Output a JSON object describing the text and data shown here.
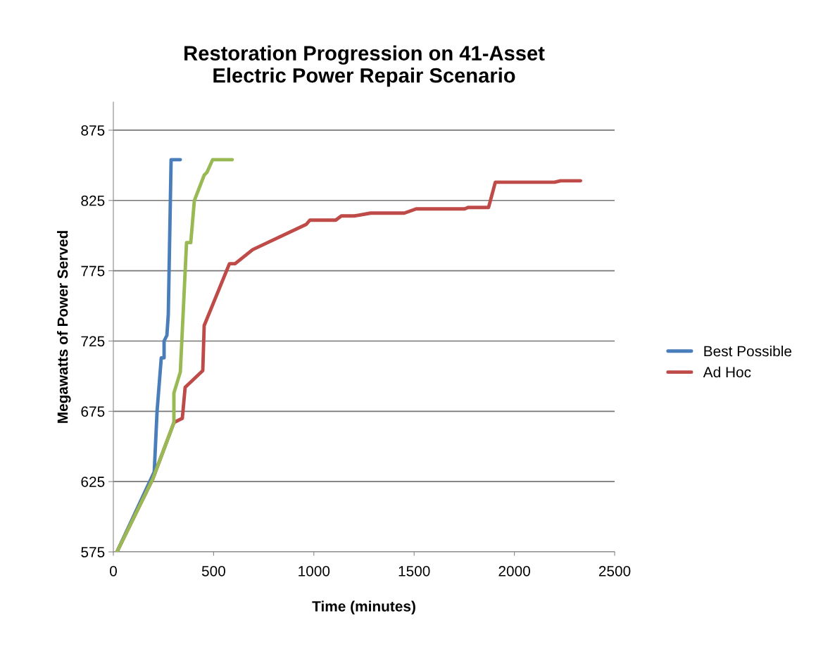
{
  "chart_data": {
    "type": "line",
    "title": "Restoration Progression on 41-Asset\nElectric Power Repair Scenario",
    "xlabel": "Time (minutes)",
    "ylabel": "Megawatts of Power Served",
    "xlim": [
      0,
      2500
    ],
    "xticks": [
      0,
      500,
      1000,
      1500,
      2000,
      2500
    ],
    "ylim": [
      575,
      895
    ],
    "yticks": [
      575,
      625,
      675,
      725,
      775,
      825,
      875
    ],
    "grid": "y",
    "legend": "right",
    "marker": "none",
    "line_style": "solid",
    "series": [
      {
        "name": "Best Possible",
        "color": "#4a7ebb",
        "x": [
          18,
          204,
          218,
          239,
          253,
          253,
          267,
          274,
          288,
          334
        ],
        "values": [
          575,
          632,
          675,
          713,
          713,
          725,
          729,
          744,
          854,
          854
        ]
      },
      {
        "name": "Ad Hoc",
        "color": "#be4b48",
        "x": [
          18,
          197,
          302,
          344,
          358,
          446,
          453,
          579,
          607,
          695,
          962,
          980,
          1109,
          1137,
          1202,
          1283,
          1451,
          1510,
          1752,
          1769,
          1871,
          1905,
          2200,
          2230,
          2330
        ],
        "values": [
          575,
          627,
          667,
          670,
          692,
          704,
          736,
          780,
          780,
          790,
          808,
          811,
          811,
          814,
          814,
          816,
          816,
          819,
          819,
          820,
          820,
          838,
          838,
          839,
          839
        ]
      },
      {
        "color": "#98b954",
        "x": [
          18,
          197,
          302,
          302,
          334,
          365,
          386,
          404,
          453,
          467,
          495,
          593
        ],
        "values": [
          575,
          627,
          667,
          688,
          703,
          795,
          795,
          825,
          843,
          845,
          854,
          854
        ]
      }
    ]
  }
}
